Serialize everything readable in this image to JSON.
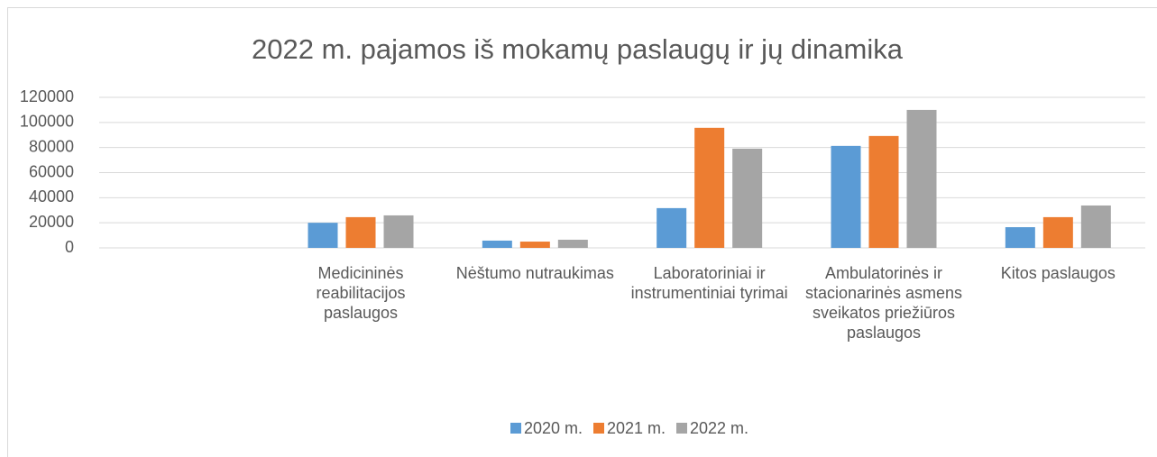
{
  "chart_data": {
    "type": "bar",
    "title": "2022 m. pajamos iš mokamų paslaugų ir jų dinamika",
    "categories": [
      null,
      "Medicininės reabilitacijos paslaugos",
      "Nėštumo nutraukimas",
      "Laboratoriniai ir instrumentiniai tyrimai",
      "Ambulatorinės ir stacionarinės asmens sveikatos priežiūros paslaugos",
      "Kitos paslaugos"
    ],
    "series": [
      {
        "name": "2020 m.",
        "color": "#5b9bd5",
        "values": [
          null,
          20000,
          5800,
          31700,
          81300,
          16500
        ]
      },
      {
        "name": "2021 m.",
        "color": "#ed7d31",
        "values": [
          null,
          24500,
          5000,
          95700,
          89200,
          24500
        ]
      },
      {
        "name": "2022 m.",
        "color": "#a5a5a5",
        "values": [
          null,
          25900,
          6500,
          79100,
          110000,
          33800
        ]
      }
    ],
    "ylim": [
      0,
      120000
    ],
    "yticks": [
      0,
      20000,
      40000,
      60000,
      80000,
      100000,
      120000
    ],
    "grid": true,
    "legend": "bottom"
  }
}
